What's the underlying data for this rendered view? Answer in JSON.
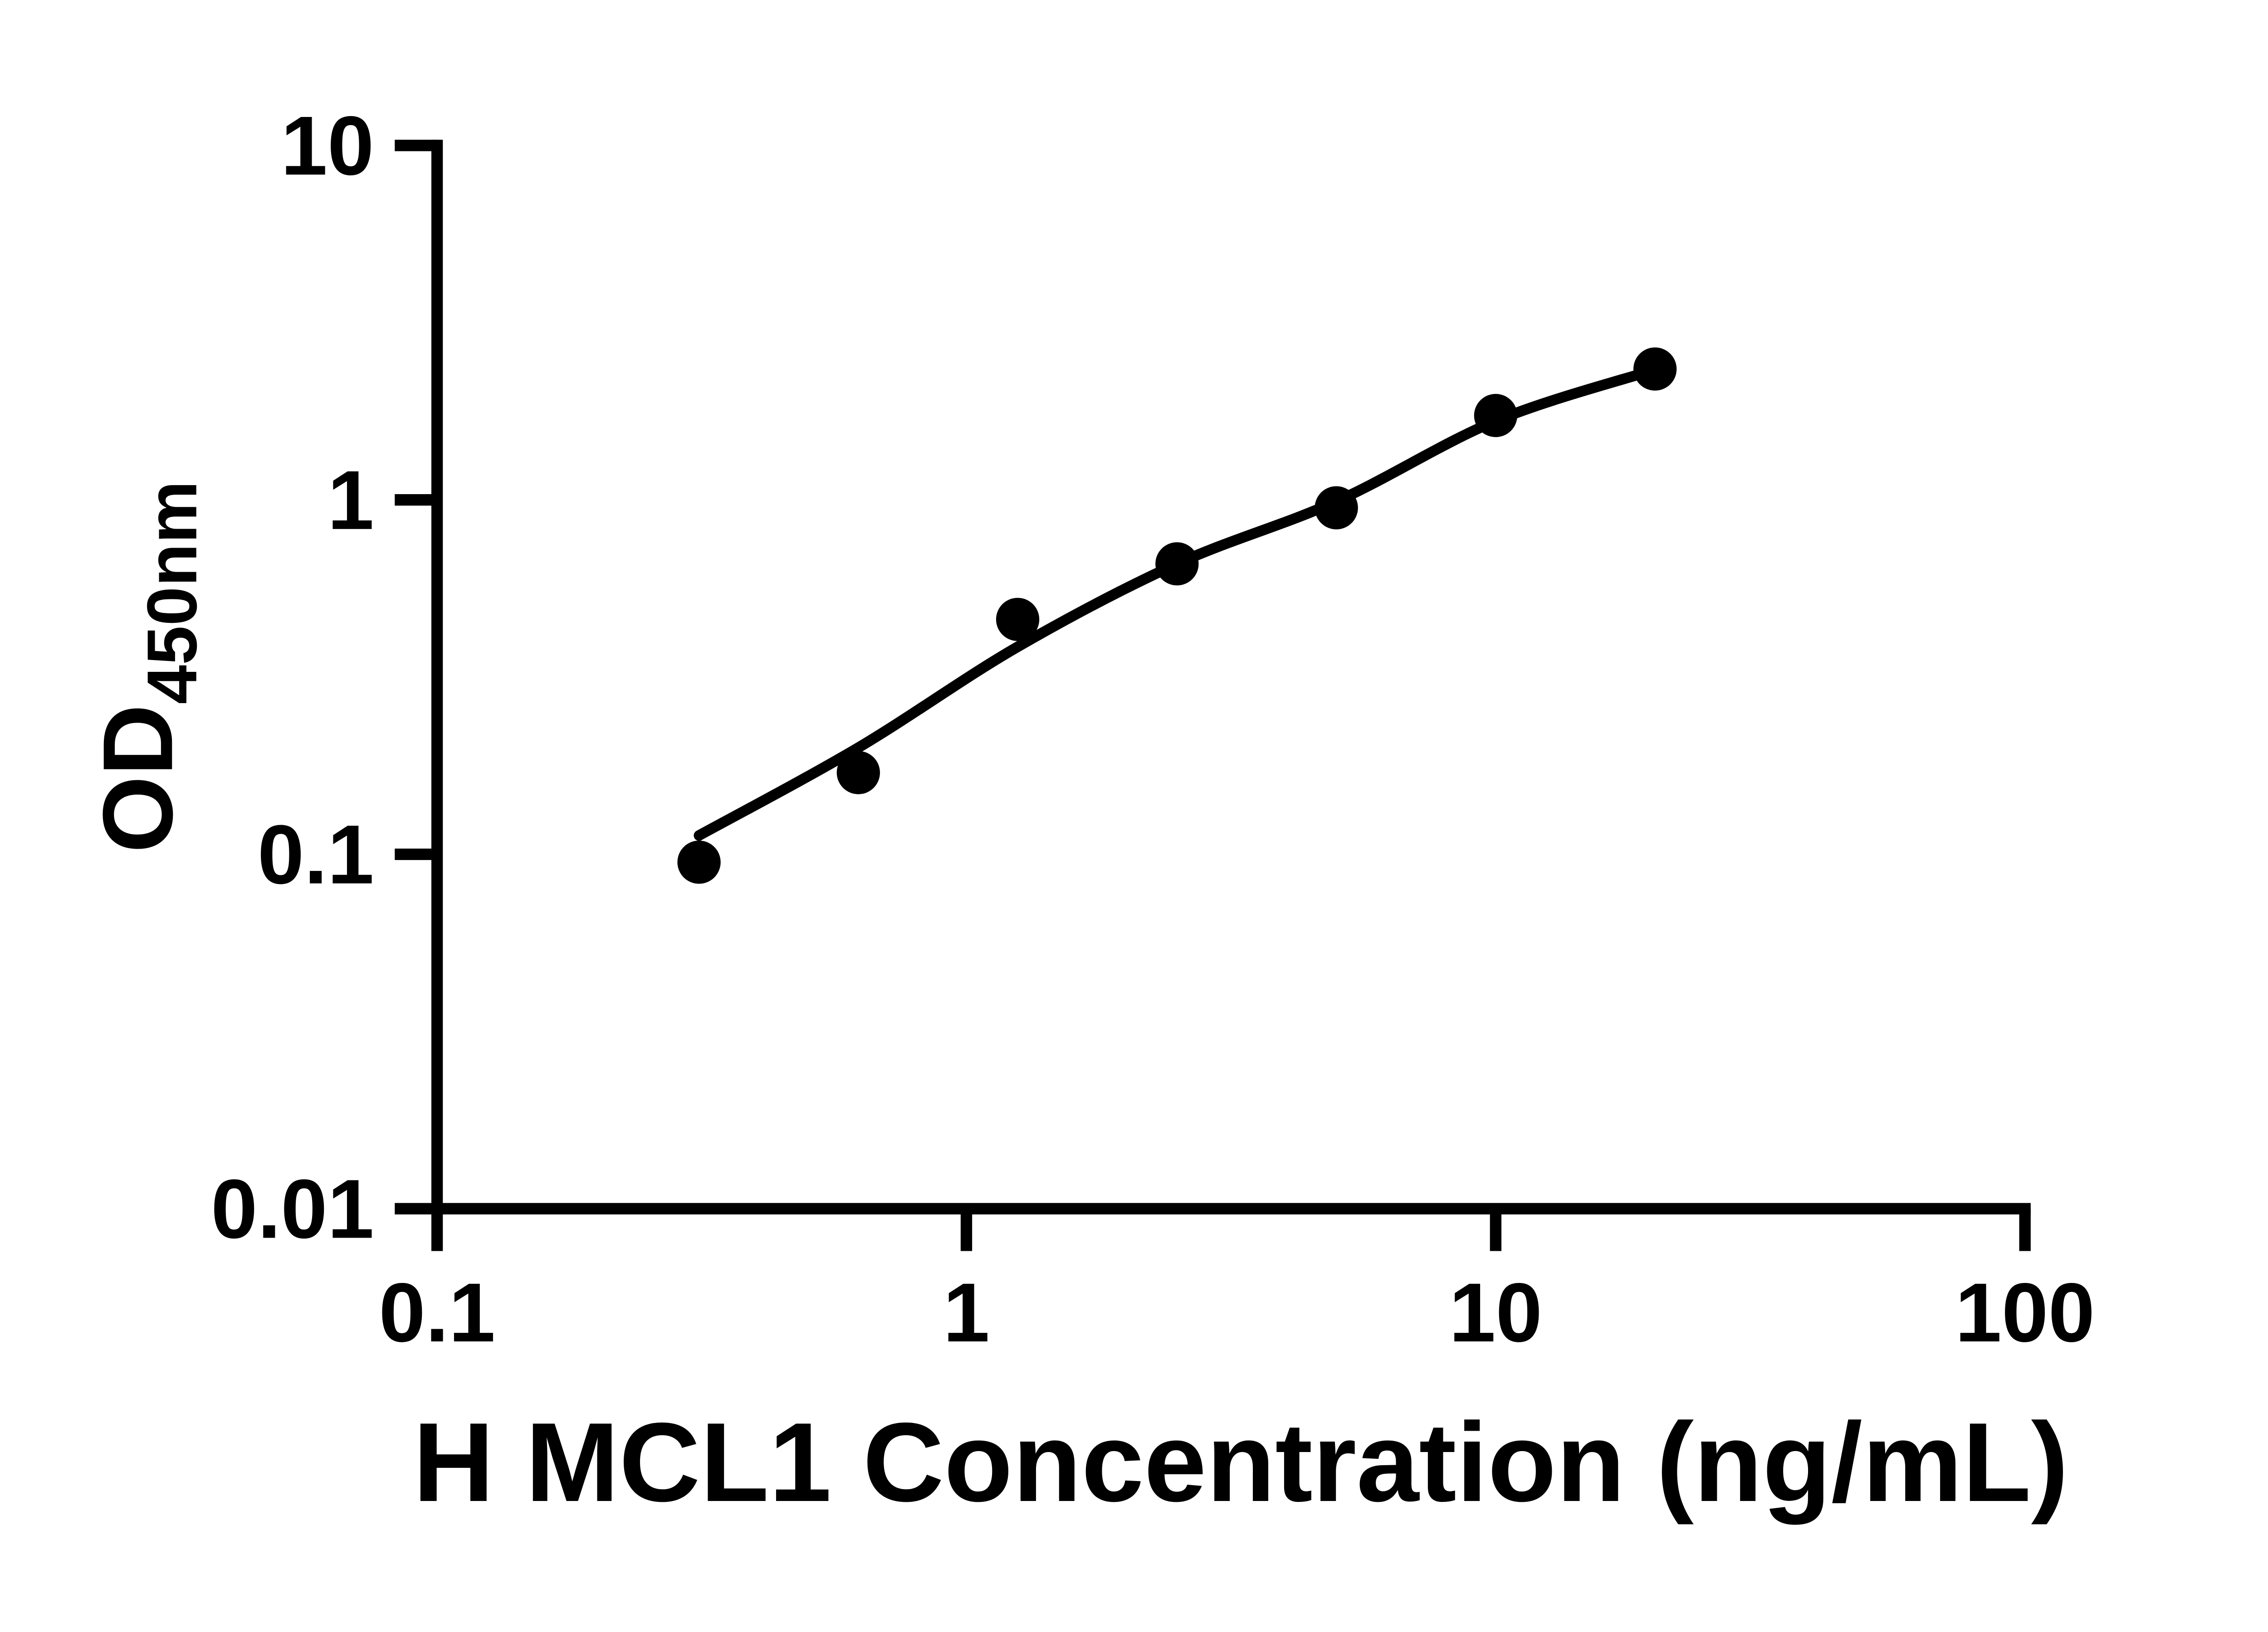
{
  "figure": {
    "background_color": "#ffffff",
    "ink_color": "#000000"
  },
  "chart_data": {
    "type": "scatter",
    "title": "",
    "xlabel": "H MCL1 Concentration (ng/mL)",
    "ylabel_main": "OD",
    "ylabel_sub": "450nm",
    "x_scale": "log10",
    "y_scale": "log10",
    "xlim": [
      0.1,
      100
    ],
    "ylim": [
      0.01,
      10
    ],
    "grid": false,
    "legend": "none",
    "x_ticks": [
      {
        "value": 0.1,
        "label": "0.1"
      },
      {
        "value": 1,
        "label": "1"
      },
      {
        "value": 10,
        "label": "10"
      },
      {
        "value": 100,
        "label": "100"
      }
    ],
    "y_ticks": [
      {
        "value": 0.01,
        "label": "0.01"
      },
      {
        "value": 0.1,
        "label": "0.1"
      },
      {
        "value": 1,
        "label": "1"
      },
      {
        "value": 10,
        "label": "10"
      }
    ],
    "series": [
      {
        "name": "H MCL1 standard points",
        "marker": "filled-circle",
        "color": "#000000",
        "x": [
          0.3125,
          0.625,
          1.25,
          2.5,
          5,
          10,
          20
        ],
        "y": [
          0.095,
          0.17,
          0.46,
          0.66,
          0.95,
          1.73,
          2.34
        ]
      }
    ],
    "fit_curve": {
      "name": "fitted standard curve",
      "color": "#000000",
      "x": [
        0.3125,
        0.625,
        1.25,
        2.5,
        5,
        10,
        20
      ],
      "y": [
        0.113,
        0.2,
        0.385,
        0.66,
        0.99,
        1.67,
        2.33
      ]
    }
  }
}
